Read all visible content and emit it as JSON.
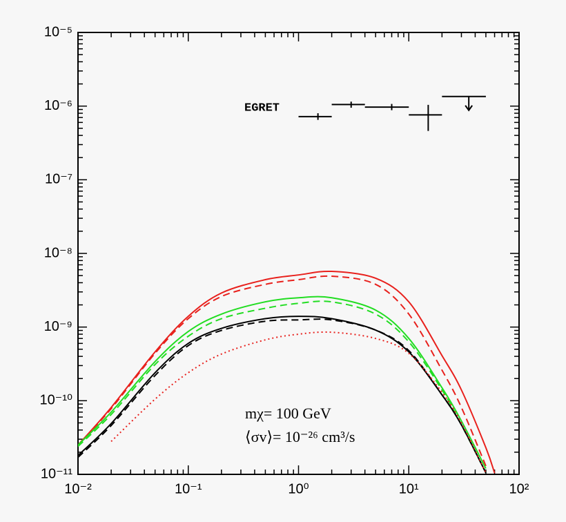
{
  "chart_data": {
    "type": "line",
    "xscale": "log",
    "yscale": "log",
    "xlim": [
      0.01,
      100
    ],
    "ylim": [
      1e-11,
      1e-05
    ],
    "xticks": [
      {
        "value": 0.01,
        "label": "10⁻²"
      },
      {
        "value": 0.1,
        "label": "10⁻¹"
      },
      {
        "value": 1,
        "label": "10⁰"
      },
      {
        "value": 10,
        "label": "10¹"
      },
      {
        "value": 100,
        "label": "10²"
      }
    ],
    "yticks": [
      {
        "value": 1e-11,
        "label": "10⁻¹¹"
      },
      {
        "value": 1e-10,
        "label": "10⁻¹⁰"
      },
      {
        "value": 1e-09,
        "label": "10⁻⁹"
      },
      {
        "value": 1e-08,
        "label": "10⁻⁸"
      },
      {
        "value": 1e-07,
        "label": "10⁻⁷"
      },
      {
        "value": 1e-06,
        "label": "10⁻⁶"
      },
      {
        "value": 1e-05,
        "label": "10⁻⁵"
      }
    ],
    "minor_ticks": true,
    "x": [
      0.01,
      0.02,
      0.05,
      0.1,
      0.2,
      0.5,
      1,
      2,
      5,
      10,
      20,
      30,
      50,
      60
    ],
    "series": [
      {
        "color": "#e8201c",
        "dash": "solid",
        "values": [
          2.5e-11,
          8.1e-11,
          4.6e-10,
          1.4e-09,
          2.9e-09,
          4.4e-09,
          5.1e-09,
          5.7e-09,
          4.6e-09,
          2.2e-09,
          4.1e-10,
          1.4e-10,
          2.3e-11,
          1.04e-11
        ]
      },
      {
        "color": "#e8201c",
        "dash": "dashed",
        "values": [
          2.5e-11,
          7.8e-11,
          4.4e-10,
          1.3e-09,
          2.6e-09,
          3.8e-09,
          4.4e-09,
          4.9e-09,
          3.8e-09,
          1.5e-09,
          2.6e-10,
          8.1e-11,
          1.3e-11,
          null
        ]
      },
      {
        "color": "#22dd22",
        "dash": "solid",
        "values": [
          2.5e-11,
          7e-11,
          3.4e-10,
          8.7e-10,
          1.5e-09,
          2.2e-09,
          2.5e-09,
          2.5e-09,
          1.7e-09,
          7e-10,
          1.5e-10,
          5.3e-11,
          1.2e-11,
          null
        ]
      },
      {
        "color": "#22dd22",
        "dash": "dashed",
        "values": [
          2.4e-11,
          6.5e-11,
          3.1e-10,
          7.5e-10,
          1.3e-09,
          1.8e-09,
          2.1e-09,
          2.2e-09,
          1.5e-09,
          6.3e-10,
          1.4e-10,
          4.7e-11,
          1.05e-11,
          null
        ]
      },
      {
        "color": "#000000",
        "dash": "solid",
        "values": [
          1.8e-11,
          4.9e-11,
          2.4e-10,
          6e-10,
          9.6e-10,
          1.3e-09,
          1.4e-09,
          1.3e-09,
          9.1e-10,
          4.6e-10,
          1.2e-10,
          4.7e-11,
          1.05e-11,
          null
        ]
      },
      {
        "color": "#000000",
        "dash": "dashed",
        "values": [
          1.7e-11,
          4.6e-11,
          2.2e-10,
          5.6e-10,
          9e-10,
          1.2e-09,
          1.25e-09,
          1.25e-09,
          9.1e-10,
          4.8e-10,
          1.2e-10,
          4.7e-11,
          1.05e-11,
          null
        ]
      },
      {
        "color": "#e8201c",
        "dash": "dotted",
        "values": [
          null,
          2.8e-11,
          1.05e-10,
          2.4e-10,
          4.3e-10,
          6.7e-10,
          8e-10,
          8.5e-10,
          7e-10,
          4.4e-10,
          1.3e-10,
          5e-11,
          1.05e-11,
          null
        ]
      }
    ],
    "egret": {
      "name": "EGRET",
      "color": "#000000",
      "x": [
        1.5,
        3,
        7,
        15,
        35
      ],
      "x_low": [
        1,
        2,
        4,
        10,
        20
      ],
      "x_high": [
        2,
        4,
        10,
        20,
        50
      ],
      "values": [
        7.2e-07,
        1.05e-06,
        9.7e-07,
        7.6e-07,
        1.35e-06
      ],
      "y_low": [
        6.5e-07,
        9.5e-07,
        8.8e-07,
        4.6e-07,
        8.5e-07
      ],
      "y_high": [
        8e-07,
        1.15e-06,
        1.07e-06,
        1.04e-06,
        1.35e-06
      ],
      "upper_limit": [
        false,
        false,
        false,
        false,
        true
      ]
    },
    "annotations": [
      "mχ= 100 GeV",
      "⟨σv⟩= 10⁻²⁶ cm³/s"
    ]
  }
}
